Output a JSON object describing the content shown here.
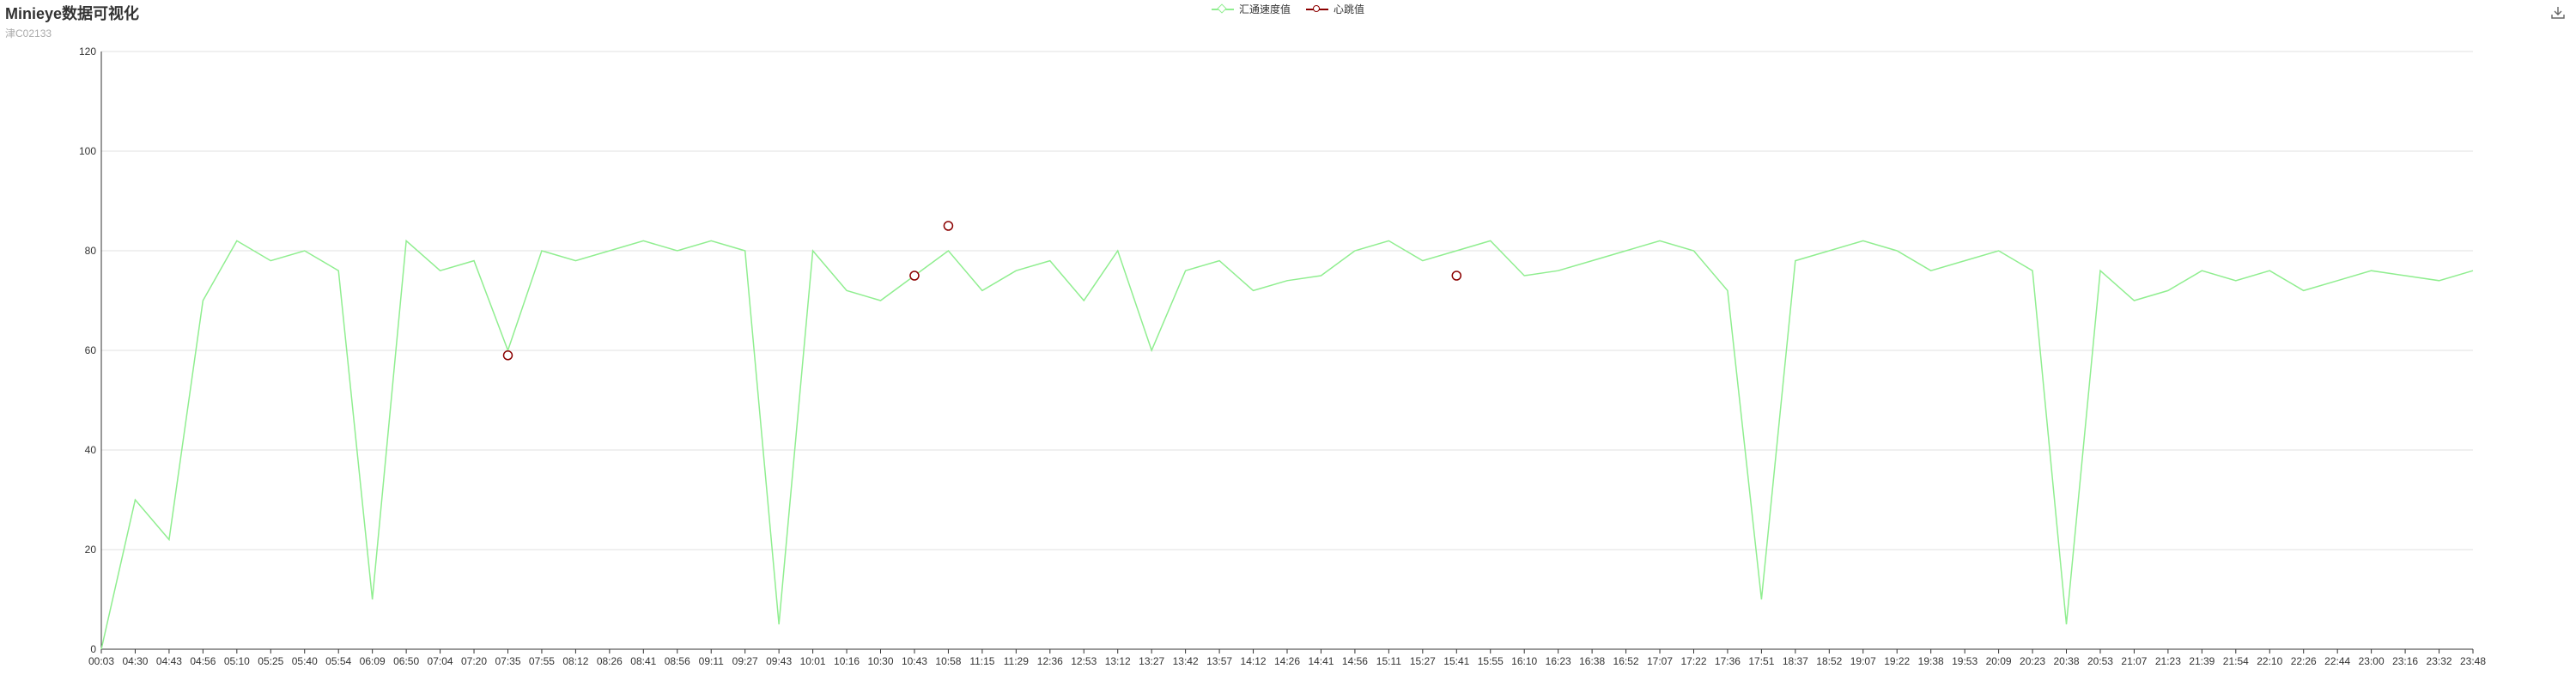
{
  "header": {
    "title": "Minieye数据可视化",
    "subtitle": "津C02133"
  },
  "legend": {
    "items": [
      {
        "label": "汇通速度值",
        "color": "#90EE90",
        "marker": "diamond"
      },
      {
        "label": "心跳值",
        "color": "#8B0000",
        "marker": "circle"
      }
    ]
  },
  "toolbar": {
    "download_icon": "download-icon"
  },
  "chart_data": {
    "type": "line",
    "title": "Minieye数据可视化",
    "subtitle": "津C02133",
    "xlabel": "",
    "ylabel": "",
    "ylim": [
      0,
      120
    ],
    "yticks": [
      0,
      20,
      40,
      60,
      80,
      100,
      120
    ],
    "grid": true,
    "legend_position": "top-center",
    "x": [
      "00:03",
      "04:30",
      "04:43",
      "04:56",
      "05:10",
      "05:25",
      "05:40",
      "05:54",
      "06:09",
      "06:50",
      "07:04",
      "07:20",
      "07:35",
      "07:55",
      "08:12",
      "08:26",
      "08:41",
      "08:56",
      "09:11",
      "09:27",
      "09:43",
      "10:01",
      "10:16",
      "10:30",
      "10:43",
      "10:58",
      "11:15",
      "11:29",
      "12:36",
      "12:53",
      "13:12",
      "13:27",
      "13:42",
      "13:57",
      "14:12",
      "14:26",
      "14:41",
      "14:56",
      "15:11",
      "15:27",
      "15:41",
      "15:55",
      "16:10",
      "16:23",
      "16:38",
      "16:52",
      "17:07",
      "17:22",
      "17:36",
      "17:51",
      "18:37",
      "18:52",
      "19:07",
      "19:22",
      "19:38",
      "19:53",
      "20:09",
      "20:23",
      "20:38",
      "20:53",
      "21:07",
      "21:23",
      "21:39",
      "21:54",
      "22:10",
      "22:26",
      "22:44",
      "23:00",
      "23:16",
      "23:32",
      "23:48"
    ],
    "series": [
      {
        "name": "汇通速度值",
        "color": "#90EE90",
        "values": [
          0,
          30,
          22,
          70,
          82,
          78,
          80,
          76,
          10,
          82,
          76,
          78,
          60,
          80,
          78,
          80,
          82,
          80,
          82,
          80,
          5,
          80,
          72,
          70,
          75,
          80,
          72,
          76,
          78,
          70,
          80,
          60,
          76,
          78,
          72,
          74,
          75,
          80,
          82,
          78,
          80,
          82,
          75,
          76,
          78,
          80,
          82,
          80,
          72,
          10,
          78,
          80,
          82,
          80,
          76,
          78,
          80,
          76,
          5,
          76,
          70,
          72,
          76,
          74,
          76,
          72,
          74,
          76,
          75,
          74,
          76
        ]
      },
      {
        "name": "心跳值",
        "color": "#8B0000",
        "points": [
          {
            "x": "07:35",
            "y": 59
          },
          {
            "x": "10:43",
            "y": 75
          },
          {
            "x": "10:58",
            "y": 85
          },
          {
            "x": "15:41",
            "y": 75
          }
        ]
      }
    ]
  }
}
